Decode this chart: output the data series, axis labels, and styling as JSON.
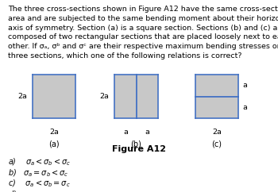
{
  "paragraph_lines": [
    "The three cross-sections shown in Figure A12 have the same cross-sectional",
    "area and are subjected to the same bending moment about their horizontal",
    "axis of symmetry. Section (a) is a square section. Sections (b) and (c) are",
    "composed of two rectangular sections that are placed loosely next to each",
    "other. If σₐ, σᵇ and σᶜ are their respective maximum bending stresses on the",
    "three sections, which one of the following relations is correct?"
  ],
  "figure_label": "Figure A12",
  "section_labels": [
    "(a)",
    "(b)",
    "(c)"
  ],
  "box_fill": "#c8c8c8",
  "box_edge": "#4472c4",
  "box_edge_width": 1.2,
  "background": "#ffffff",
  "text_color": "#000000",
  "font_size_paragraph": 6.8,
  "font_size_labels": 7.0,
  "font_size_dim": 6.8,
  "font_size_figure": 8.0,
  "font_size_options": 7.0,
  "option_a": "a)    $\\sigma_a < \\sigma_b < \\sigma_c$",
  "option_b": "b)   $\\sigma_a = \\sigma_b < \\sigma_c$",
  "option_c": "c)    $\\sigma_a < \\sigma_b = \\sigma_c$",
  "option_d": "d)   $\\sigma_a = \\sigma_b = \\sigma_c$"
}
